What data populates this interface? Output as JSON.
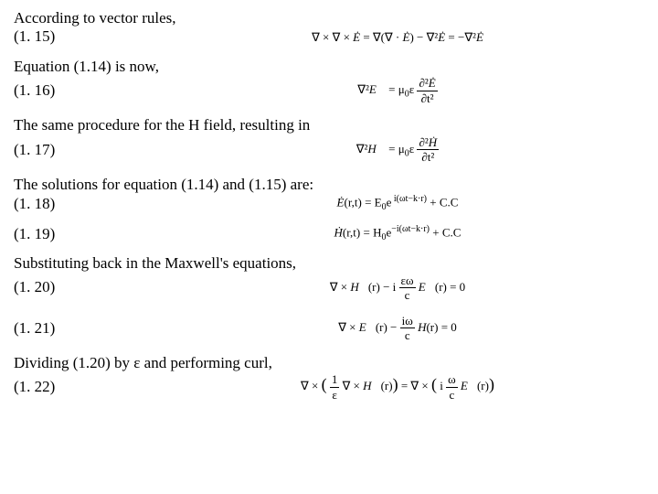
{
  "blocks": [
    {
      "text": "According to vector rules,",
      "eqnum": "(1. 15)",
      "eq": "∇ × ∇ × <span class='it'>Ė</span> = ∇(∇ · <span class='it'>Ė</span>) − ∇²<span class='it'>Ė</span> = −∇²<span class='it'>Ė</span>"
    },
    {
      "text": "Equation (1.14) is now,",
      "eqnum": "(1. 16)",
      "eq": "∇²<span class='it'>E⃗</span> = μ<sub class='sm'>0</sub>ε <span style='display:inline-block;vertical-align:middle;text-align:center;'><span style='display:block;border-bottom:1px solid #000;padding:0 2px'>∂²<span class='it'>Ė</span></span><span style='display:block;padding:0 2px'>∂t²</span></span>"
    },
    {
      "text": "The same procedure for the H field, resulting in",
      "eqnum": "(1. 17)",
      "eq": "∇²<span class='it'>H⃗</span> = μ<sub class='sm'>0</sub>ε <span style='display:inline-block;vertical-align:middle;text-align:center;'><span style='display:block;border-bottom:1px solid #000;padding:0 2px'>∂²<span class='it'>Ḣ</span></span><span style='display:block;padding:0 2px'>∂t²</span></span>"
    },
    {
      "text": "The solutions for equation (1.14) and (1.15) are:",
      "eqnum": "(1. 18)",
      "eq": "<span class='it'>Ė</span>(r,t) = E<sub class='sm'>0</sub>e<sup class='sm'>&nbsp;i(ωt−k·r)</sup> + C.C"
    },
    {
      "text": null,
      "eqnum": "(1. 19)",
      "eq": "<span class='it'>Ḣ</span>(r,t) = H<sub class='sm'>0</sub>e<sup class='sm'>−i(ωt−k·r)</sup> + C.C"
    },
    {
      "text": "Substituting back in the Maxwell's equations,",
      "eqnum": "(1. 20)",
      "eq": "∇ × <span class='it'>H⃗</span>(r) − i <span style='display:inline-block;vertical-align:middle;text-align:center;'><span style='display:block;border-bottom:1px solid #000;padding:0 2px'>εω</span><span style='display:block;padding:0 2px'>c</span></span> <span class='it'>E⃗</span>(r) = 0"
    },
    {
      "text": null,
      "eqnum": "(1. 21)",
      "eq": "∇ × <span class='it'>E⃗</span>(r) − <span style='display:inline-block;vertical-align:middle;text-align:center;'><span style='display:block;border-bottom:1px solid #000;padding:0 2px'>iω</span><span style='display:block;padding:0 2px'>c</span></span> <span class='it'>H</span>(r) = 0"
    },
    {
      "text": "Dividing (1.20) by ε and performing curl,",
      "eqnum": "(1. 22)",
      "eq": "∇ × <span style='font-size:18px'>(</span> <span style='display:inline-block;vertical-align:middle;text-align:center;'><span style='display:block;border-bottom:1px solid #000;padding:0 2px'>1</span><span style='display:block;padding:0 2px'>ε</span></span> ∇ × <span class='it'>H⃗</span>(r)<span style='font-size:18px'>)</span> = ∇ × <span style='font-size:18px'>(</span> i <span style='display:inline-block;vertical-align:middle;text-align:center;'><span style='display:block;border-bottom:1px solid #000;padding:0 2px'>ω</span><span style='display:block;padding:0 2px'>c</span></span> <span class='it'>E⃗</span>(r)<span style='font-size:18px'>)</span>"
    }
  ]
}
